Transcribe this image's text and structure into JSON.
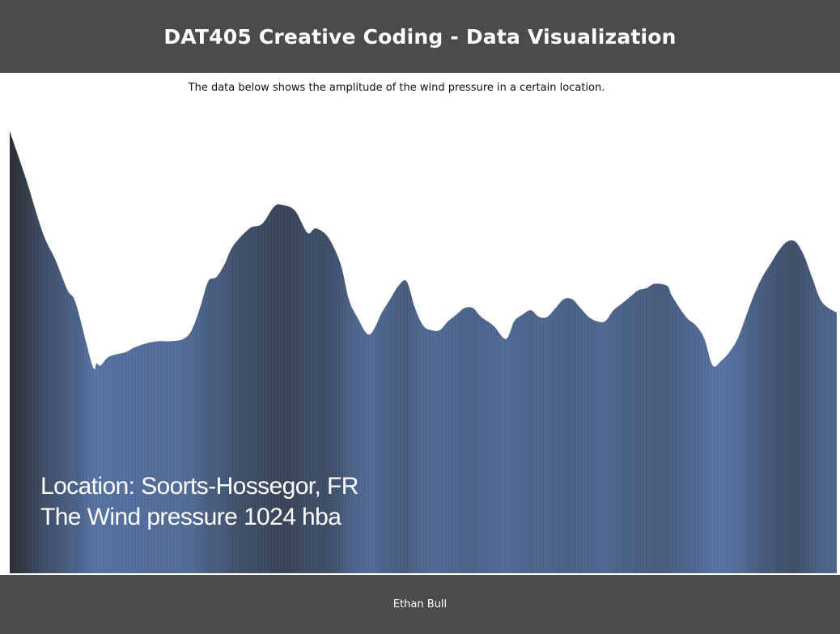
{
  "header": {
    "title": "DAT405 Creative Coding - Data Visualization"
  },
  "intro": {
    "text": "The data below shows the amplitude of the wind pressure in a certain location."
  },
  "info": {
    "location": "Location: Soorts-Hossegor, FR",
    "pressure": "The Wind pressure 1024 hba"
  },
  "footer": {
    "author": "Ethan Bull"
  },
  "chart_data": {
    "type": "area",
    "title": "",
    "xlabel": "",
    "ylabel": "",
    "ylim": [
      0,
      100
    ],
    "grid": false,
    "legend": "none",
    "colors": {
      "low": "#5a77a6",
      "high": "#2e3136"
    },
    "points": [
      [
        0,
        100
      ],
      [
        2,
        89
      ],
      [
        4,
        77
      ],
      [
        5.5,
        71
      ],
      [
        7,
        64
      ],
      [
        8,
        61
      ],
      [
        10,
        47
      ],
      [
        10.5,
        47.5
      ],
      [
        11,
        47
      ],
      [
        12,
        49
      ],
      [
        14,
        50
      ],
      [
        15,
        51
      ],
      [
        16.5,
        52
      ],
      [
        18,
        52.5
      ],
      [
        19.5,
        52.5
      ],
      [
        21,
        53
      ],
      [
        22,
        55
      ],
      [
        23,
        60
      ],
      [
        24,
        66
      ],
      [
        25,
        67
      ],
      [
        26,
        70
      ],
      [
        27,
        74
      ],
      [
        29,
        78
      ],
      [
        30.5,
        79
      ],
      [
        32,
        83
      ],
      [
        33,
        83.3
      ],
      [
        34.5,
        82
      ],
      [
        36,
        77
      ],
      [
        37,
        78
      ],
      [
        38.5,
        76
      ],
      [
        40,
        70
      ],
      [
        41,
        62
      ],
      [
        42,
        58
      ],
      [
        43.5,
        54
      ],
      [
        45,
        59
      ],
      [
        46,
        62
      ],
      [
        47,
        65
      ],
      [
        48,
        66
      ],
      [
        49,
        60
      ],
      [
        50,
        56
      ],
      [
        51,
        55
      ],
      [
        52,
        55
      ],
      [
        53,
        57
      ],
      [
        54,
        58.5
      ],
      [
        55,
        60
      ],
      [
        56,
        60
      ],
      [
        57,
        58
      ],
      [
        58.5,
        56
      ],
      [
        60,
        53
      ],
      [
        61,
        57
      ],
      [
        62,
        58.5
      ],
      [
        63,
        59.5
      ],
      [
        64,
        58
      ],
      [
        65,
        58
      ],
      [
        66,
        60
      ],
      [
        67,
        62
      ],
      [
        68,
        62
      ],
      [
        69,
        60
      ],
      [
        70,
        58
      ],
      [
        71,
        57
      ],
      [
        72,
        57
      ],
      [
        73,
        59.5
      ],
      [
        74,
        61
      ],
      [
        75,
        62.5
      ],
      [
        76,
        64
      ],
      [
        77,
        64.5
      ],
      [
        78,
        65.5
      ],
      [
        79.5,
        65
      ],
      [
        80,
        63
      ],
      [
        81,
        60
      ],
      [
        82,
        57.5
      ],
      [
        83,
        56
      ],
      [
        84,
        53
      ],
      [
        85,
        47
      ],
      [
        86,
        48
      ],
      [
        87,
        50
      ],
      [
        88,
        53
      ],
      [
        89,
        58
      ],
      [
        90,
        63
      ],
      [
        91,
        67
      ],
      [
        92,
        70
      ],
      [
        93,
        73
      ],
      [
        94,
        75
      ],
      [
        95,
        75
      ],
      [
        96,
        72
      ],
      [
        97,
        67
      ],
      [
        98,
        62
      ],
      [
        99,
        60
      ],
      [
        100,
        59
      ]
    ]
  }
}
